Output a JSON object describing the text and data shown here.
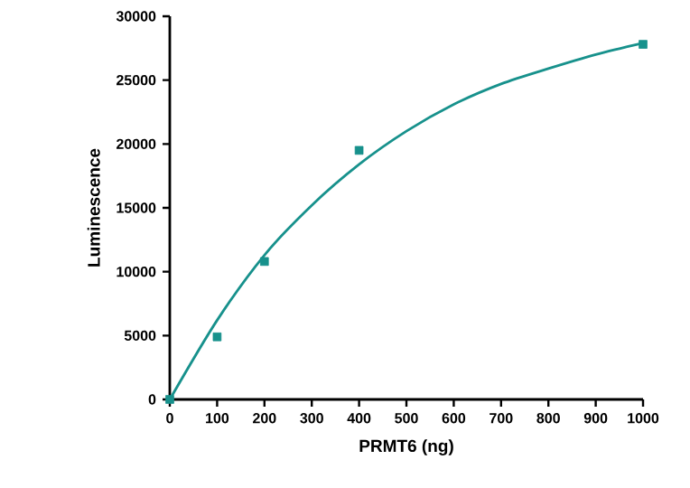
{
  "chart_data": {
    "type": "scatter",
    "xlabel": "PRMT6 (ng)",
    "ylabel": "Luminescence",
    "xlim": [
      0,
      1000
    ],
    "xticks": [
      0,
      100,
      200,
      300,
      400,
      500,
      600,
      700,
      800,
      900,
      1000
    ],
    "ylim": [
      0,
      30000
    ],
    "yticks": [
      0,
      5000,
      10000,
      15000,
      20000,
      25000,
      30000
    ],
    "grid": false,
    "series": [
      {
        "marker": "square",
        "color": "#17918c",
        "x": [
          0,
          100,
          200,
          400,
          1000
        ],
        "values": [
          0,
          4900,
          10800,
          19500,
          27800
        ]
      },
      {
        "type": "line",
        "marker": "none",
        "line_style": "solid",
        "color": "#17918c",
        "x": [
          0,
          100,
          200,
          300,
          400,
          500,
          600,
          700,
          800,
          900,
          1000
        ],
        "values": [
          0,
          6200,
          11300,
          15200,
          18400,
          21000,
          23100,
          24700,
          25900,
          27000,
          27900
        ]
      }
    ]
  }
}
